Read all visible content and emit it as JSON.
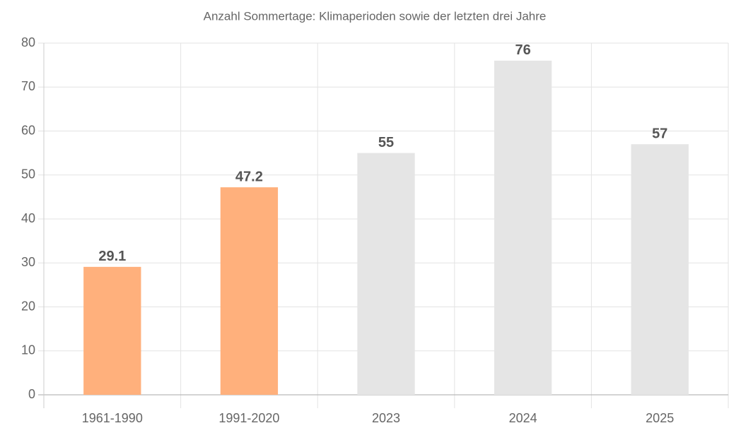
{
  "chart_data": {
    "type": "bar",
    "title": "Anzahl Sommertage: Klimaperioden sowie der letzten drei Jahre",
    "categories": [
      "1961-1990",
      "1991-2020",
      "2023",
      "2024",
      "2025"
    ],
    "values": [
      29.1,
      47.2,
      55,
      76,
      57
    ],
    "colors": [
      "#ffb07c",
      "#ffb07c",
      "#e5e5e5",
      "#e5e5e5",
      "#e5e5e5"
    ],
    "ylim": [
      0,
      80
    ],
    "yticks": [
      0,
      10,
      20,
      30,
      40,
      50,
      60,
      70,
      80
    ],
    "grid": true
  }
}
